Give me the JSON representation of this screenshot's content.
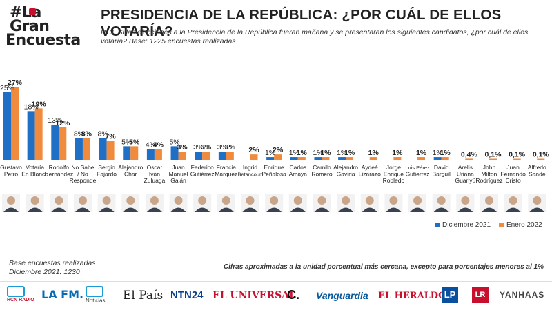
{
  "header": {
    "logo_line1": "#La",
    "logo_line2": "Gran",
    "logo_line3": "Encuesta",
    "title": "PRESIDENCIA DE LA REPÚBLICA: ¿POR CUÁL DE ELLOS VOTARÍA?",
    "question": "P13. Si las elecciones a la Presidencia de la República fueran mañana y se presentaran los siguientes candidatos, ¿por cuál de ellos votaría? Base: 1225  encuestas realizadas"
  },
  "legend": {
    "series1": "Diciembre 2021",
    "series2": "Enero 2022"
  },
  "notes": {
    "base_line1": "Base encuestas realizadas",
    "base_line2": "Diciembre 2021: 1230",
    "approx": "Cifras aproximadas a la unidad porcentual más cercana, excepto para porcentajes menores al 1%"
  },
  "sponsors": {
    "rcn_radio": "RCN RADIO",
    "lafm": "LA FM.",
    "noticias": "Noticias",
    "el_pais": "El País",
    "ntn24": "NTN24",
    "el_universal": "EL UNIVERSAL",
    "c_logo": "C.",
    "vanguardia": "Vanguardia",
    "el_heraldo": "EL HERALDO",
    "lp": "LP",
    "lr": "LR",
    "yanhaas": "YANHAAS"
  },
  "colors": {
    "series1": "#1f6fc7",
    "series2": "#f08a3c",
    "title": "#222222",
    "brand_red": "#c8102e"
  },
  "chart_data": {
    "type": "bar",
    "categories": [
      "Gustavo Petro",
      "Votaría En Blanco",
      "Rodolfo Hernández",
      "No Sabe / No Responde",
      "Sergio Fajardo",
      "Alejandro Char",
      "Oscar Iván Zuluaga",
      "Juan Manuel Galán",
      "Federico Gutiérrez",
      "Francia Márquez",
      "Ingrid Betancourt",
      "Enrique Peñalosa",
      "Carlos Amaya",
      "Camilo Romero",
      "Alejandro Gaviria",
      "Aydeé Lizarazo",
      "Jorge Enrique Robledo",
      "Luis Pérez Gutiérrez",
      "David Barguil",
      "Arelis Uriana Guarlyú",
      "John Milton Rodríguez",
      "Juan Fernando Cristo",
      "Alfredo Saade"
    ],
    "category_lines": [
      [
        "Gustavo",
        "Petro"
      ],
      [
        "Votaría",
        "En Blanco"
      ],
      [
        "Rodolfo",
        "Hernández"
      ],
      [
        "No Sabe",
        "/ No",
        "Responde"
      ],
      [
        "Sergio",
        "Fajardo"
      ],
      [
        "Alejandro",
        "Char"
      ],
      [
        "Oscar",
        "Iván",
        "Zuluaga"
      ],
      [
        "Juan",
        "Manuel",
        "Galán"
      ],
      [
        "Federico",
        "Gutiérrez"
      ],
      [
        "Francia",
        "Márquez"
      ],
      [
        "Ingrid",
        "Betancourt"
      ],
      [
        "Enrique",
        "Peñalosa"
      ],
      [
        "Carlos",
        "Amaya"
      ],
      [
        "Camilo",
        "Romero"
      ],
      [
        "Alejandro",
        "Gaviria"
      ],
      [
        "Aydeé",
        "Lizarazo"
      ],
      [
        "Jorge",
        "Enrique",
        "Robledo"
      ],
      [
        "Luis Pérez",
        "Gutierrez"
      ],
      [
        "David",
        "Barguil"
      ],
      [
        "Arelis",
        "Uriana",
        "Guarlyú"
      ],
      [
        "John",
        "Milton",
        "Rodríguez"
      ],
      [
        "Juan",
        "Fernando",
        "Cristo"
      ],
      [
        "Alfredo",
        "Saade"
      ]
    ],
    "series": [
      {
        "name": "Diciembre 2021",
        "values": [
          25,
          18,
          13,
          8,
          8,
          5,
          4,
          5,
          3,
          3,
          null,
          1,
          1,
          1,
          1,
          null,
          null,
          null,
          1,
          null,
          null,
          null,
          null
        ],
        "labels": [
          "25%",
          "18%",
          "13%",
          "8%",
          "8%",
          "5%",
          "4%",
          "5%",
          "3%",
          "3%",
          "",
          "1%",
          "1%",
          "1%",
          "1%",
          "",
          "",
          "",
          "1%",
          "",
          "",
          "",
          ""
        ]
      },
      {
        "name": "Enero 2022",
        "values": [
          27,
          19,
          12,
          8,
          7,
          5,
          4,
          3,
          3,
          3,
          2,
          2,
          1,
          1,
          1,
          1,
          1,
          1,
          1,
          0.4,
          0.1,
          0.1,
          0.1
        ],
        "labels": [
          "27%",
          "19%",
          "12%",
          "8%",
          "7%",
          "5%",
          "4%",
          "3%",
          "3%",
          "3%",
          "2%",
          "2%",
          "1%",
          "1%",
          "1%",
          "1%",
          "1%",
          "1%",
          "1%",
          "0,4%",
          "0,1%",
          "0,1%",
          "0,1%"
        ]
      }
    ],
    "ylim": [
      0,
      27
    ],
    "grid": false,
    "legend_position": "bottom-right"
  }
}
